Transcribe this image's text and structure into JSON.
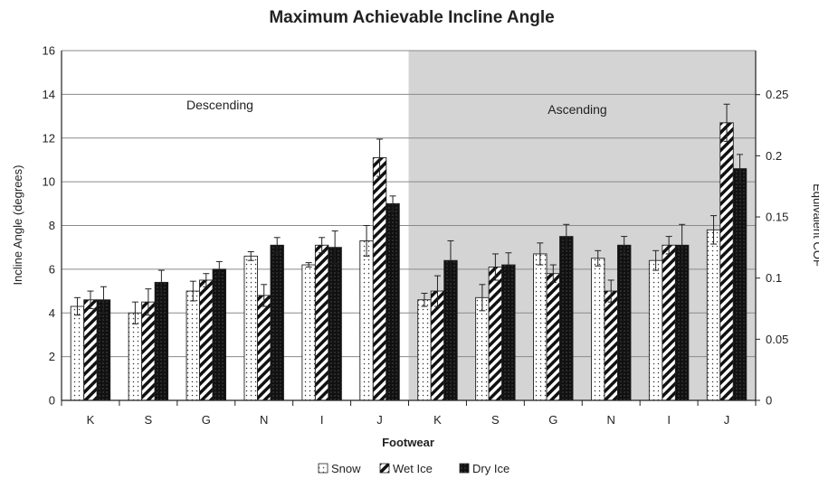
{
  "chart_data": {
    "type": "bar",
    "title": "Maximum Achievable Incline Angle",
    "xlabel": "Footwear",
    "ylabel": "Incline Angle (degrees)",
    "ylabel_right": "Equivalent COF",
    "ylim": [
      0,
      16
    ],
    "yticks": [
      "0",
      "2",
      "4",
      "6",
      "8",
      "10",
      "12",
      "14",
      "16"
    ],
    "ylim_right": [
      0,
      0.286
    ],
    "yticks_right": [
      "0",
      "0.05",
      "0.1",
      "0.15",
      "0.2",
      "0.25"
    ],
    "grid": true,
    "legend_position": "bottom",
    "categories": [
      "K",
      "S",
      "G",
      "N",
      "I",
      "J",
      "K",
      "S",
      "G",
      "N",
      "I",
      "J"
    ],
    "regions": [
      {
        "label": "Descending",
        "from": 0,
        "to": 5,
        "shaded": false
      },
      {
        "label": "Ascending",
        "from": 6,
        "to": 11,
        "shaded": true,
        "color": "#d4d4d4"
      }
    ],
    "series": [
      {
        "name": "Snow",
        "pattern": "dots",
        "values": [
          4.3,
          4.0,
          5.0,
          6.6,
          6.2,
          7.3,
          4.6,
          4.7,
          6.7,
          6.5,
          6.4,
          7.8
        ],
        "errors": [
          0.4,
          0.5,
          0.45,
          0.2,
          0.1,
          0.7,
          0.3,
          0.6,
          0.5,
          0.35,
          0.45,
          0.65
        ]
      },
      {
        "name": "Wet Ice",
        "pattern": "hatch",
        "values": [
          4.6,
          4.5,
          5.5,
          4.8,
          7.1,
          11.1,
          5.0,
          6.1,
          5.8,
          5.0,
          7.1,
          12.7
        ],
        "errors": [
          0.4,
          0.6,
          0.3,
          0.5,
          0.35,
          0.85,
          0.7,
          0.6,
          0.4,
          0.5,
          0.4,
          0.85
        ]
      },
      {
        "name": "Dry Ice",
        "pattern": "solid",
        "values": [
          4.6,
          5.4,
          6.0,
          7.1,
          7.0,
          9.0,
          6.4,
          6.2,
          7.5,
          7.1,
          7.1,
          10.6
        ],
        "errors": [
          0.6,
          0.55,
          0.35,
          0.35,
          0.75,
          0.35,
          0.9,
          0.55,
          0.55,
          0.4,
          0.95,
          0.65
        ]
      }
    ]
  }
}
